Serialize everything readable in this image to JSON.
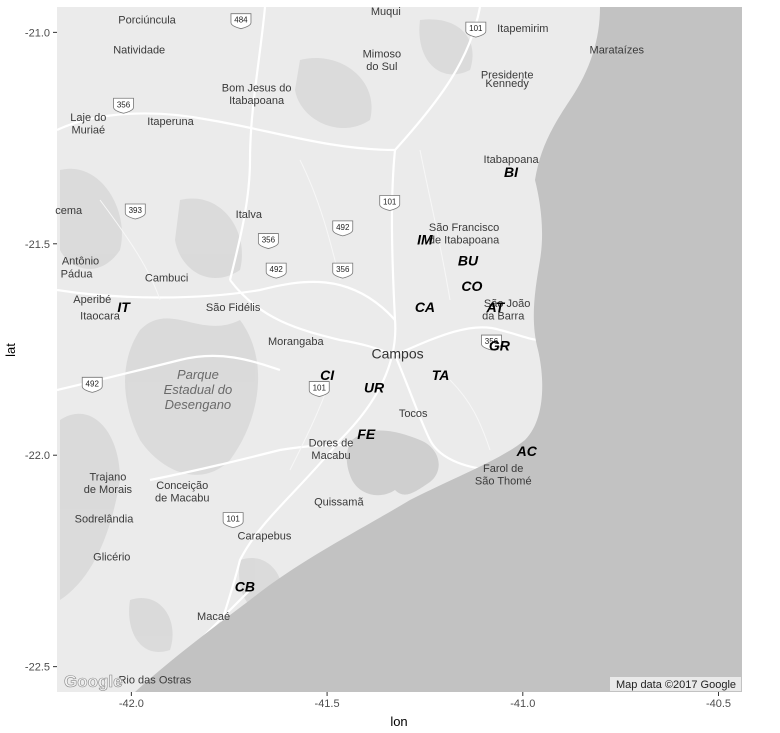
{
  "chart_data": {
    "type": "scatter",
    "xlabel": "lon",
    "ylabel": "lat",
    "xlim": [
      -42.19,
      -40.44
    ],
    "ylim": [
      -22.56,
      -20.94
    ],
    "x_ticks": [
      -42.0,
      -41.5,
      -41.0,
      -40.5
    ],
    "x_tick_labels": [
      "-42.0",
      "-41.5",
      "-41.0",
      "-40.5"
    ],
    "y_ticks": [
      -21.0,
      -21.5,
      -22.0,
      -22.5
    ],
    "y_tick_labels": [
      "-21.0",
      "-21.5",
      "-22.0",
      "-22.5"
    ],
    "grid": false,
    "points": [
      {
        "label": "BI",
        "lon": -41.03,
        "lat": -21.33
      },
      {
        "label": "IM",
        "lon": -41.25,
        "lat": -21.49
      },
      {
        "label": "BU",
        "lon": -41.14,
        "lat": -21.54
      },
      {
        "label": "CO",
        "lon": -41.13,
        "lat": -21.6
      },
      {
        "label": "IT",
        "lon": -42.02,
        "lat": -21.65
      },
      {
        "label": "CA",
        "lon": -41.25,
        "lat": -21.65
      },
      {
        "label": "AT",
        "lon": -41.07,
        "lat": -21.65
      },
      {
        "label": "GR",
        "lon": -41.06,
        "lat": -21.74
      },
      {
        "label": "CI",
        "lon": -41.5,
        "lat": -21.81
      },
      {
        "label": "TA",
        "lon": -41.21,
        "lat": -21.81
      },
      {
        "label": "UR",
        "lon": -41.38,
        "lat": -21.84
      },
      {
        "label": "FE",
        "lon": -41.4,
        "lat": -21.95
      },
      {
        "label": "AC",
        "lon": -40.99,
        "lat": -21.99
      },
      {
        "label": "CB",
        "lon": -41.71,
        "lat": -22.31
      }
    ]
  },
  "map": {
    "colors": {
      "land": "#ebebeb",
      "sea": "#c2c2c2",
      "lake": "#cfcfcf",
      "road": "#ffffff",
      "forest": "#dcdcdc"
    },
    "places": [
      {
        "name": "Porciúncula",
        "lon": -41.96,
        "lat": -20.97
      },
      {
        "name": "Natividade",
        "lon": -41.98,
        "lat": -21.04
      },
      {
        "name": "Muqui",
        "lon": -41.35,
        "lat": -20.95
      },
      {
        "name": "Itapemirim",
        "lon": -41.0,
        "lat": -20.99
      },
      {
        "name": "Marataízes",
        "lon": -40.76,
        "lat": -21.04
      },
      {
        "name": "Mimoso",
        "lon": -41.36,
        "lat": -21.05
      },
      {
        "name": "do Sul",
        "lon": -41.36,
        "lat": -21.08
      },
      {
        "name": "Presidente",
        "lon": -41.04,
        "lat": -21.1
      },
      {
        "name": "Kennedy",
        "lon": -41.04,
        "lat": -21.12
      },
      {
        "name": "Bom Jesus do",
        "lon": -41.68,
        "lat": -21.13
      },
      {
        "name": "Itabapoana",
        "lon": -41.68,
        "lat": -21.16
      },
      {
        "name": "Laje do",
        "lon": -42.11,
        "lat": -21.2
      },
      {
        "name": "Muriaé",
        "lon": -42.11,
        "lat": -21.23
      },
      {
        "name": "Itaperuna",
        "lon": -41.9,
        "lat": -21.21
      },
      {
        "name": "Itabapoana",
        "lon": -41.03,
        "lat": -21.3
      },
      {
        "name": "cema",
        "lon": -42.16,
        "lat": -21.42
      },
      {
        "name": "Italva",
        "lon": -41.7,
        "lat": -21.43
      },
      {
        "name": "São Francisco",
        "lon": -41.15,
        "lat": -21.46
      },
      {
        "name": "de Itabapoana",
        "lon": -41.15,
        "lat": -21.49
      },
      {
        "name": "Antônio",
        "lon": -42.13,
        "lat": -21.54
      },
      {
        "name": "Pádua",
        "lon": -42.14,
        "lat": -21.57
      },
      {
        "name": "Cambuci",
        "lon": -41.91,
        "lat": -21.58
      },
      {
        "name": "Aperibé",
        "lon": -42.1,
        "lat": -21.63
      },
      {
        "name": "Itaocara",
        "lon": -42.08,
        "lat": -21.67
      },
      {
        "name": "São Fidélis",
        "lon": -41.74,
        "lat": -21.65
      },
      {
        "name": "São João",
        "lon": -41.04,
        "lat": -21.64
      },
      {
        "name": "da Barra",
        "lon": -41.05,
        "lat": -21.67
      },
      {
        "name": "Morangaba",
        "lon": -41.58,
        "lat": -21.73
      },
      {
        "name": "Tocos",
        "lon": -41.28,
        "lat": -21.9
      },
      {
        "name": "Dores de",
        "lon": -41.49,
        "lat": -21.97
      },
      {
        "name": "Macabu",
        "lon": -41.49,
        "lat": -22.0
      },
      {
        "name": "Trajano",
        "lon": -42.06,
        "lat": -22.05
      },
      {
        "name": "de Morais",
        "lon": -42.06,
        "lat": -22.08
      },
      {
        "name": "Conceição",
        "lon": -41.87,
        "lat": -22.07
      },
      {
        "name": "de Macabu",
        "lon": -41.87,
        "lat": -22.1
      },
      {
        "name": "Farol de",
        "lon": -41.05,
        "lat": -22.03
      },
      {
        "name": "São Thomé",
        "lon": -41.05,
        "lat": -22.06
      },
      {
        "name": "Quissamã",
        "lon": -41.47,
        "lat": -22.11
      },
      {
        "name": "Sodrelândia",
        "lon": -42.07,
        "lat": -22.15
      },
      {
        "name": "Carapebus",
        "lon": -41.66,
        "lat": -22.19
      },
      {
        "name": "Glicério",
        "lon": -42.05,
        "lat": -22.24
      },
      {
        "name": "Macaé",
        "lon": -41.79,
        "lat": -22.38
      },
      {
        "name": "Rio das Ostras",
        "lon": -41.94,
        "lat": -22.53
      }
    ],
    "major_place": {
      "name": "Campos",
      "lon": -41.32,
      "lat": -21.76
    },
    "park_label": [
      "Parque",
      "Estadual do",
      "Desengano"
    ],
    "road_shields": [
      {
        "num": "484",
        "lon": -41.72,
        "lat": -20.97
      },
      {
        "num": "101",
        "lon": -41.12,
        "lat": -20.99
      },
      {
        "num": "356",
        "lon": -42.02,
        "lat": -21.17
      },
      {
        "num": "393",
        "lon": -41.99,
        "lat": -21.42
      },
      {
        "num": "101",
        "lon": -41.34,
        "lat": -21.4
      },
      {
        "num": "492",
        "lon": -41.46,
        "lat": -21.46
      },
      {
        "num": "356",
        "lon": -41.65,
        "lat": -21.49
      },
      {
        "num": "492",
        "lon": -41.63,
        "lat": -21.56
      },
      {
        "num": "356",
        "lon": -41.46,
        "lat": -21.56
      },
      {
        "num": "356",
        "lon": -41.08,
        "lat": -21.73
      },
      {
        "num": "492",
        "lon": -42.1,
        "lat": -21.83
      },
      {
        "num": "101",
        "lon": -41.52,
        "lat": -21.84
      },
      {
        "num": "101",
        "lon": -41.74,
        "lat": -22.15
      }
    ],
    "attribution": "Map data ©2017 Google",
    "logo_text": "Google"
  }
}
